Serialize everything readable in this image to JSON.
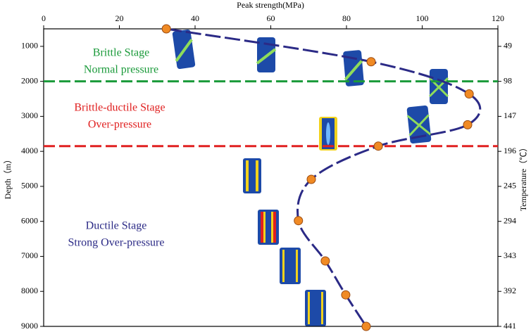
{
  "chart_data": {
    "type": "line",
    "xlabel": "Peak strength(MPa)",
    "ylabel": "Depth（m）",
    "y2label": "Temperature（℃）",
    "xlim": [
      0,
      120
    ],
    "xticks": [
      0,
      20,
      40,
      60,
      80,
      100,
      120
    ],
    "ylim": [
      500,
      9000
    ],
    "yticks": [
      1000,
      2000,
      3000,
      4000,
      5000,
      6000,
      7000,
      8000,
      9000
    ],
    "y2lim": [
      24.5,
      441
    ],
    "y2ticks": [
      49,
      98,
      147,
      196,
      245,
      294,
      343,
      392,
      441
    ],
    "y_inverted": true,
    "series": [
      {
        "color": "#2b2a86",
        "marker_color": "#f08a24",
        "x": [
          32.4,
          86.5,
          112.4,
          112,
          88.4,
          70.7,
          67.3,
          74.4,
          79.8,
          85.2
        ],
        "values": [
          500,
          1440,
          2360,
          3240,
          3850,
          4800,
          5980,
          7130,
          8100,
          9000
        ]
      }
    ],
    "reference_lines": [
      {
        "value": 2000,
        "color": "#1a9a3a"
      },
      {
        "value": 3850,
        "color": "#e02020"
      }
    ],
    "annotations": [
      {
        "text": "Brittle Stage",
        "color": "#1a9a3a"
      },
      {
        "text": "Normal pressure",
        "color": "#1a9a3a"
      },
      {
        "text": "Brittle-ductile Stage",
        "color": "#e02020"
      },
      {
        "text": "Over-pressure",
        "color": "#e02020"
      },
      {
        "text": "Ductile Stage",
        "color": "#2b2a86"
      },
      {
        "text": "Strong Over-pressure",
        "color": "#2b2a86"
      }
    ]
  }
}
